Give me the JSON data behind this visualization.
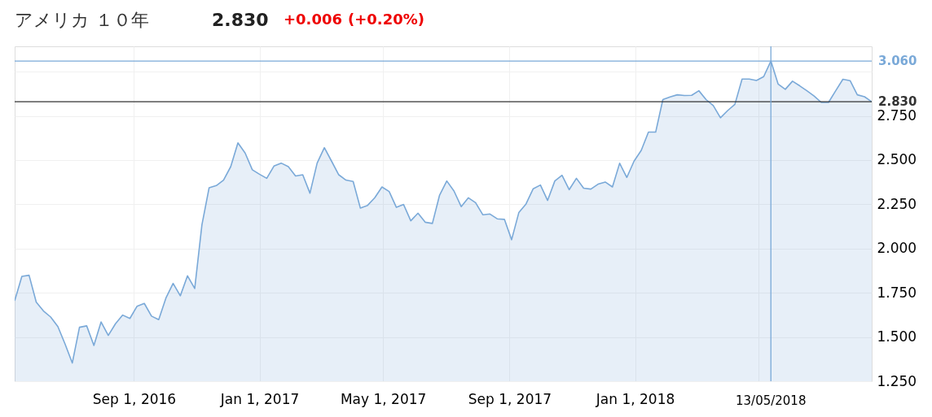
{
  "chart_data": {
    "type": "area",
    "title": "アメリカ １０年",
    "annotations": [
      "2.830",
      "+0.006",
      "(+0.20%)"
    ],
    "x": [
      "2016-05-08",
      "2016-05-15",
      "2016-05-22",
      "2016-05-29",
      "2016-06-05",
      "2016-06-12",
      "2016-06-19",
      "2016-06-26",
      "2016-07-03",
      "2016-07-10",
      "2016-07-17",
      "2016-07-24",
      "2016-07-31",
      "2016-08-07",
      "2016-08-14",
      "2016-08-21",
      "2016-08-28",
      "2016-09-04",
      "2016-09-11",
      "2016-09-18",
      "2016-09-25",
      "2016-10-02",
      "2016-10-09",
      "2016-10-16",
      "2016-10-23",
      "2016-10-30",
      "2016-11-06",
      "2016-11-13",
      "2016-11-20",
      "2016-11-27",
      "2016-12-04",
      "2016-12-11",
      "2016-12-18",
      "2016-12-25",
      "2017-01-01",
      "2017-01-08",
      "2017-01-15",
      "2017-01-22",
      "2017-01-29",
      "2017-02-05",
      "2017-02-12",
      "2017-02-19",
      "2017-02-26",
      "2017-03-05",
      "2017-03-12",
      "2017-03-19",
      "2017-03-26",
      "2017-04-02",
      "2017-04-09",
      "2017-04-16",
      "2017-04-23",
      "2017-04-30",
      "2017-05-07",
      "2017-05-14",
      "2017-05-21",
      "2017-05-28",
      "2017-06-04",
      "2017-06-11",
      "2017-06-18",
      "2017-06-25",
      "2017-07-02",
      "2017-07-09",
      "2017-07-16",
      "2017-07-23",
      "2017-07-30",
      "2017-08-06",
      "2017-08-13",
      "2017-08-20",
      "2017-08-27",
      "2017-09-03",
      "2017-09-10",
      "2017-09-17",
      "2017-09-24",
      "2017-10-01",
      "2017-10-08",
      "2017-10-15",
      "2017-10-22",
      "2017-10-29",
      "2017-11-05",
      "2017-11-12",
      "2017-11-19",
      "2017-11-26",
      "2017-12-03",
      "2017-12-10",
      "2017-12-17",
      "2017-12-24",
      "2017-12-31",
      "2018-01-07",
      "2018-01-14",
      "2018-01-21",
      "2018-01-28",
      "2018-02-04",
      "2018-02-11",
      "2018-02-18",
      "2018-02-25",
      "2018-03-04",
      "2018-03-11",
      "2018-03-18",
      "2018-03-25",
      "2018-04-01",
      "2018-04-08",
      "2018-04-15",
      "2018-04-22",
      "2018-04-29",
      "2018-05-06",
      "2018-05-13",
      "2018-05-20",
      "2018-05-27",
      "2018-06-03",
      "2018-06-10",
      "2018-06-17",
      "2018-06-24",
      "2018-07-01",
      "2018-07-08",
      "2018-07-15",
      "2018-07-22",
      "2018-07-29",
      "2018-08-05",
      "2018-08-12",
      "2018-08-19"
    ],
    "series": [
      {
        "color": "#7aa9d8",
        "values": [
          1.705,
          1.843,
          1.849,
          1.697,
          1.647,
          1.613,
          1.559,
          1.46,
          1.353,
          1.555,
          1.563,
          1.452,
          1.585,
          1.509,
          1.575,
          1.624,
          1.605,
          1.674,
          1.69,
          1.618,
          1.598,
          1.72,
          1.803,
          1.733,
          1.846,
          1.774,
          2.134,
          2.344,
          2.356,
          2.387,
          2.463,
          2.597,
          2.54,
          2.445,
          2.42,
          2.397,
          2.466,
          2.483,
          2.463,
          2.41,
          2.417,
          2.313,
          2.483,
          2.57,
          2.494,
          2.417,
          2.387,
          2.379,
          2.229,
          2.244,
          2.287,
          2.348,
          2.322,
          2.233,
          2.249,
          2.157,
          2.2,
          2.149,
          2.142,
          2.302,
          2.382,
          2.325,
          2.237,
          2.287,
          2.259,
          2.191,
          2.195,
          2.168,
          2.165,
          2.05,
          2.203,
          2.252,
          2.338,
          2.359,
          2.272,
          2.382,
          2.414,
          2.333,
          2.397,
          2.341,
          2.336,
          2.364,
          2.376,
          2.348,
          2.482,
          2.402,
          2.494,
          2.555,
          2.658,
          2.658,
          2.842,
          2.857,
          2.869,
          2.865,
          2.866,
          2.892,
          2.842,
          2.808,
          2.739,
          2.78,
          2.815,
          2.958,
          2.958,
          2.95,
          2.972,
          3.06,
          2.93,
          2.9,
          2.946,
          2.92,
          2.892,
          2.862,
          2.826,
          2.826,
          2.892,
          2.957,
          2.949,
          2.869,
          2.858,
          2.83
        ]
      }
    ],
    "xlim": [
      "2016-05-08",
      "2018-08-19"
    ],
    "xticks": [
      {
        "value": "2016-09-01",
        "label": "Sep 1, 2016"
      },
      {
        "value": "2017-01-01",
        "label": "Jan 1, 2017"
      },
      {
        "value": "2017-05-01",
        "label": "May 1, 2017"
      },
      {
        "value": "2017-09-01",
        "label": "Sep 1, 2017"
      },
      {
        "value": "2018-01-01",
        "label": "Jan 1, 2018"
      },
      {
        "value": "2018-05-01",
        "label": null
      }
    ],
    "ylim": [
      1.25,
      3.143
    ],
    "yticks": [
      {
        "value": 1.25,
        "label": "1.250"
      },
      {
        "value": 1.5,
        "label": "1.500"
      },
      {
        "value": 1.75,
        "label": "1.750"
      },
      {
        "value": 2.0,
        "label": "2.000"
      },
      {
        "value": 2.25,
        "label": "2.250"
      },
      {
        "value": 2.5,
        "label": "2.500"
      },
      {
        "value": 2.75,
        "label": "2.750"
      },
      {
        "value": 3.0,
        "label": null
      }
    ],
    "ref_lines": [
      {
        "axis": "y",
        "value": 3.06,
        "label": "3.060",
        "color": "#7aa9d8"
      },
      {
        "axis": "y",
        "value": 2.83,
        "label": "2.830",
        "color": "#333333"
      },
      {
        "axis": "x",
        "value": "2018-05-13",
        "label": "13/05/2018",
        "color": "#7aa9d8"
      }
    ],
    "grid": true
  }
}
